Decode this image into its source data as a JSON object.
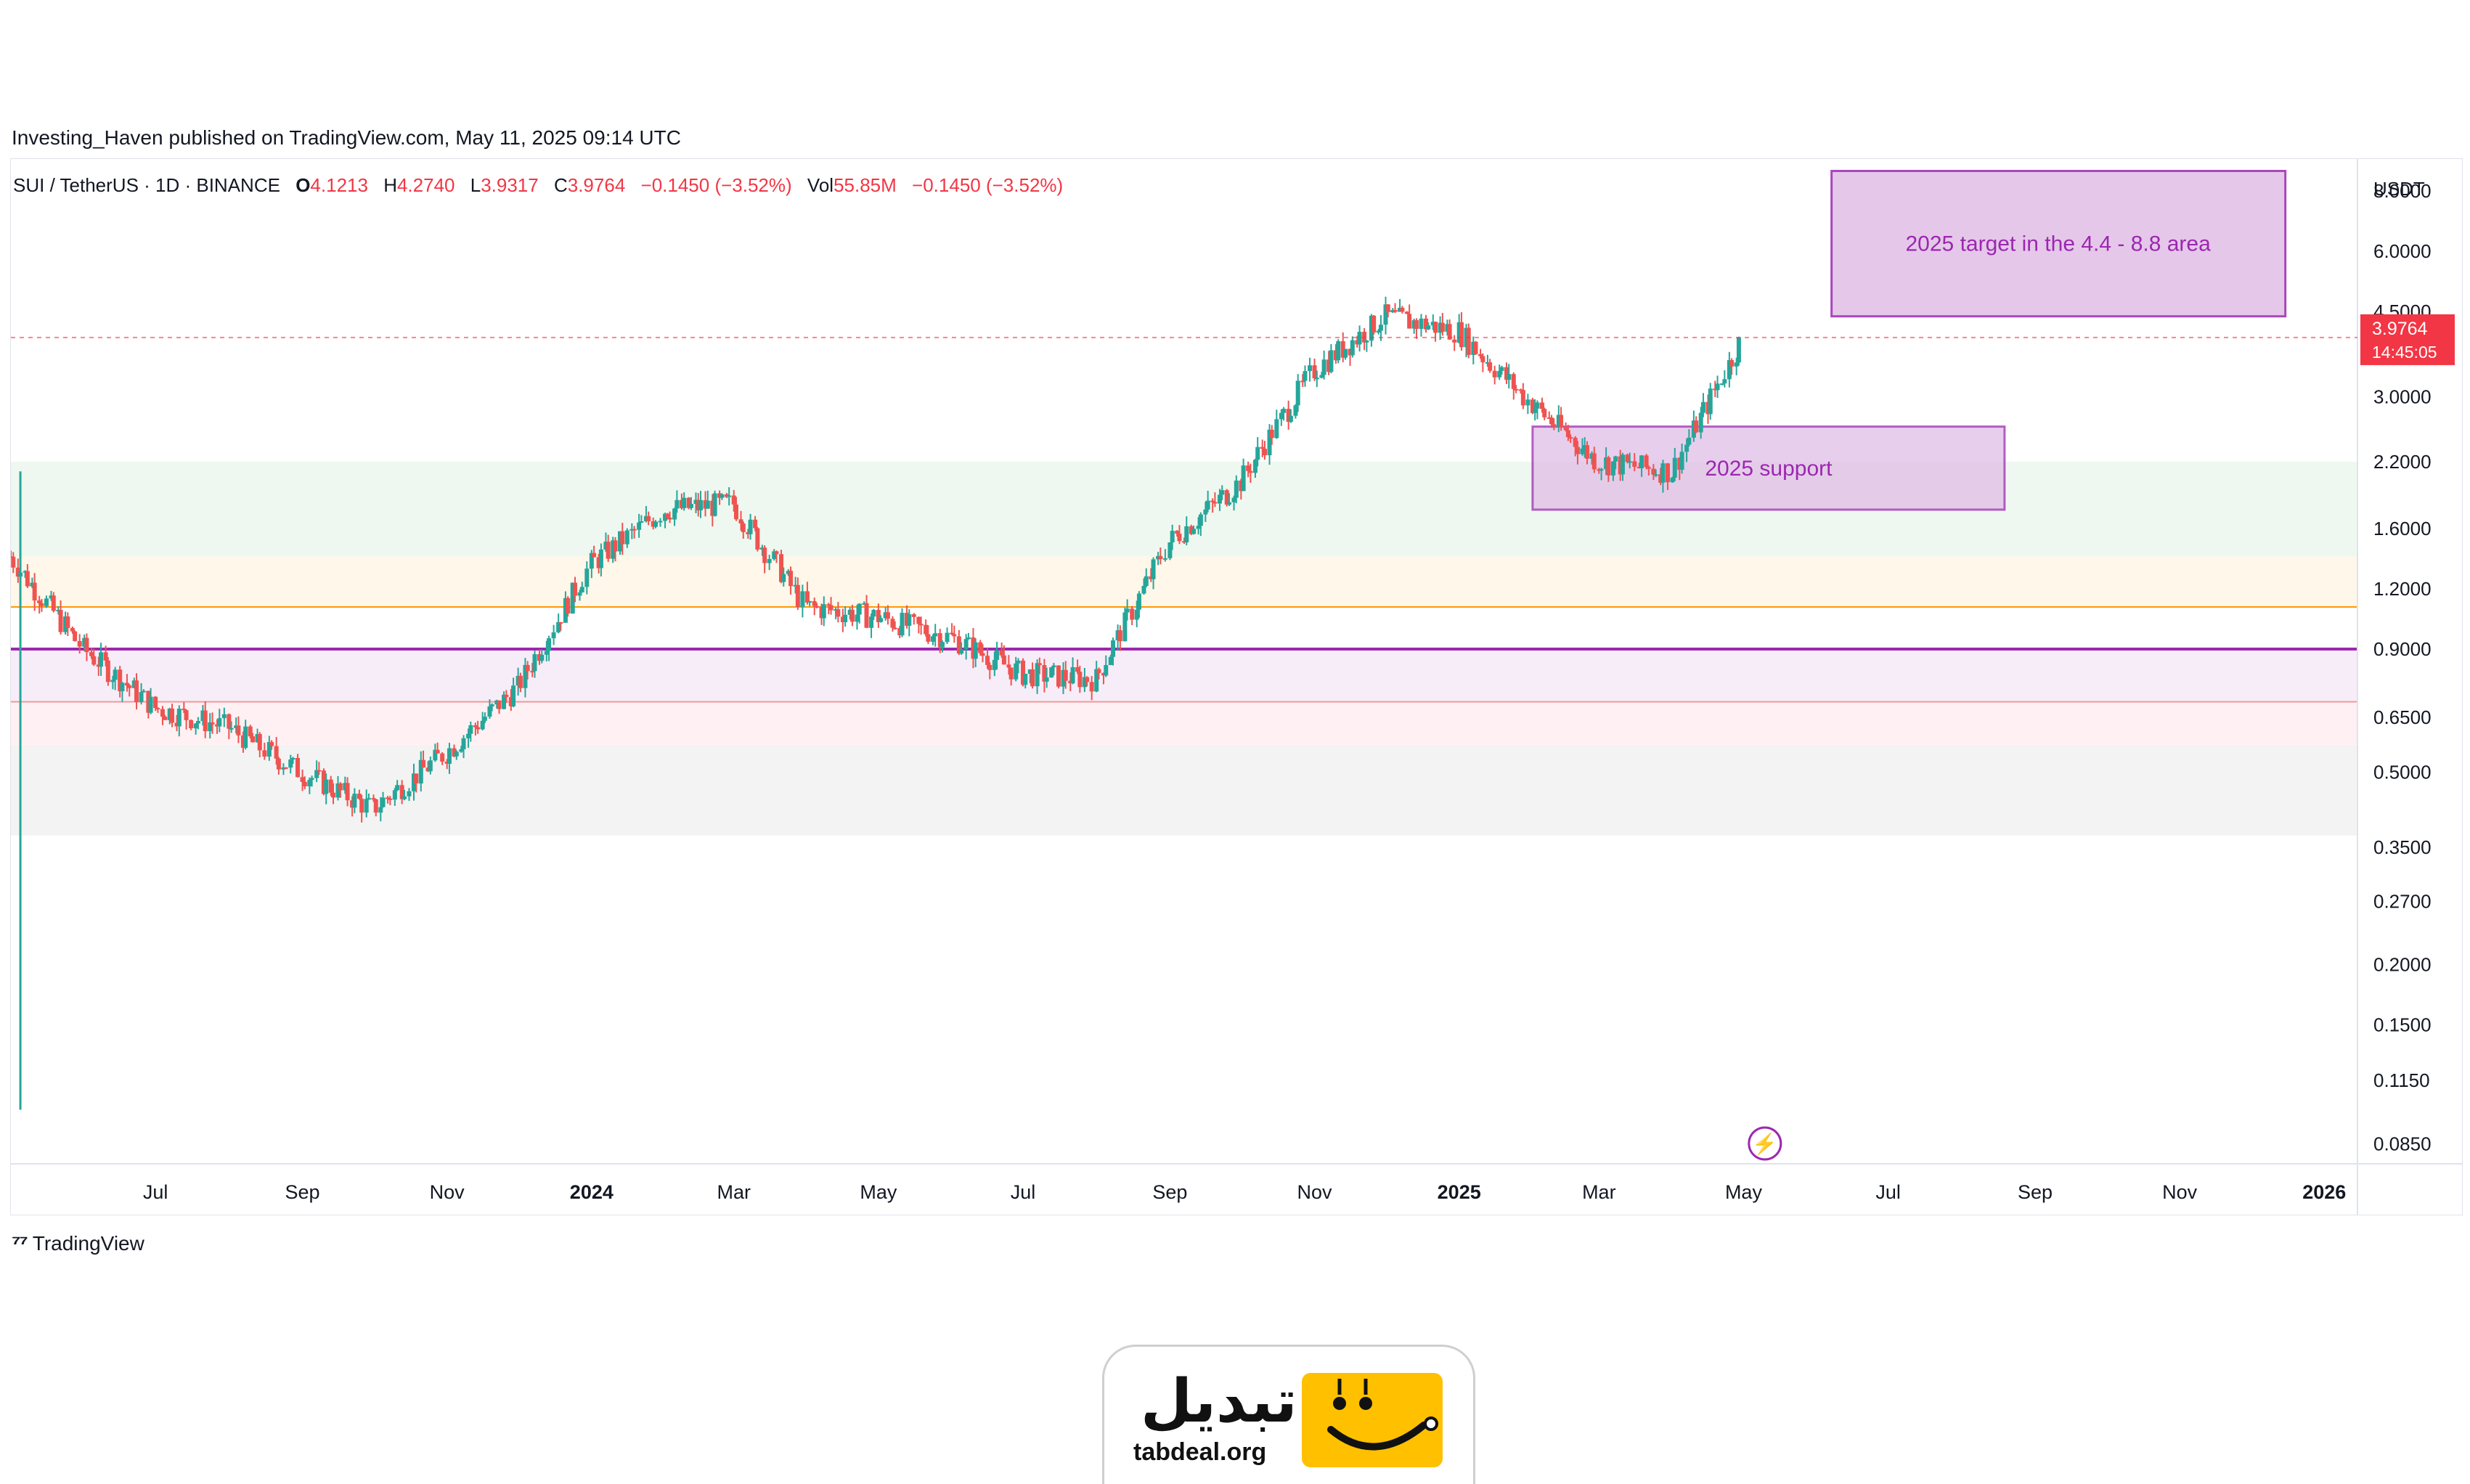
{
  "published_line": "Investing_Haven published on TradingView.com, May 11, 2025 09:14 UTC",
  "symbol_legend": {
    "symbol": "SUI / TetherUS · 1D · BINANCE",
    "open_label": "O",
    "open": "4.1213",
    "high_label": "H",
    "high": "4.2740",
    "low_label": "L",
    "low": "3.9317",
    "close_label": "C",
    "close": "3.9764",
    "change": "−0.1450 (−3.52%)",
    "vol_label": "Vol",
    "vol": "55.85M",
    "vol_change": "−0.1450 (−3.52%)"
  },
  "currency": "USDT",
  "price_axis": [
    "8.0000",
    "6.0000",
    "4.5000",
    "3.0000",
    "2.2000",
    "1.6000",
    "1.2000",
    "0.9000",
    "0.6500",
    "0.5000",
    "0.3500",
    "0.2700",
    "0.2000",
    "0.1500",
    "0.1150",
    "0.0850"
  ],
  "time_axis": [
    "Jul",
    "Sep",
    "Nov",
    "2024",
    "Mar",
    "May",
    "Jul",
    "Sep",
    "Nov",
    "2025",
    "Mar",
    "May",
    "Jul",
    "Sep",
    "Nov",
    "2026"
  ],
  "current_price": {
    "value": "3.9764",
    "countdown": "14:45:05",
    "color": "#f23645"
  },
  "annotations": {
    "target": "2025 target in the 4.4 - 8.8 area",
    "support": "2025 support"
  },
  "tv_brand": "TradingView",
  "tabdeal": {
    "name": "تبدیل",
    "url": "tabdeal.org",
    "color": "#ffc000"
  },
  "colors": {
    "up": "#26a69a",
    "down": "#ef5350",
    "annotation": "#9c27b0",
    "annotation_fill": "#e1bee7"
  },
  "chart_data": {
    "type": "candlestick",
    "scale": "log",
    "ylim": [
      0.08,
      9
    ],
    "price_levels": [
      {
        "value": 0.9,
        "color": "#9c27b0",
        "zone_to": 0.7,
        "zone_color": "#f3e5f5"
      },
      {
        "value": 1.1,
        "color": "#ff9800",
        "zone_to": 1.4,
        "zone_color": "#fff3e0"
      },
      {
        "value": 0.7,
        "color": "#ef9a9a",
        "zone_to": 0.57,
        "zone_color": "#ffebee"
      },
      {
        "zone_from": 1.4,
        "zone_to": 2.2,
        "zone_color": "#e8f5e9"
      },
      {
        "zone_from": 0.57,
        "zone_to": 0.37,
        "zone_color": "#eeeeee"
      }
    ],
    "target_zone": [
      4.4,
      8.8
    ],
    "support_zone": [
      1.75,
      2.6
    ],
    "series": [
      {
        "date": "2023-05",
        "close": 1.4
      },
      {
        "date": "2023-06",
        "close": 0.9
      },
      {
        "date": "2023-07",
        "close": 0.68
      },
      {
        "date": "2023-08",
        "close": 0.62
      },
      {
        "date": "2023-09",
        "close": 0.5
      },
      {
        "date": "2023-10",
        "close": 0.42
      },
      {
        "date": "2023-11",
        "close": 0.55
      },
      {
        "date": "2023-12",
        "close": 0.75
      },
      {
        "date": "2024-01",
        "close": 1.35
      },
      {
        "date": "2024-02",
        "close": 1.75
      },
      {
        "date": "2024-03",
        "close": 1.8
      },
      {
        "date": "2024-04",
        "close": 1.1
      },
      {
        "date": "2024-05",
        "close": 1.05
      },
      {
        "date": "2024-06",
        "close": 0.95
      },
      {
        "date": "2024-07",
        "close": 0.8
      },
      {
        "date": "2024-08",
        "close": 0.78
      },
      {
        "date": "2024-09",
        "close": 1.5
      },
      {
        "date": "2024-10",
        "close": 2.0
      },
      {
        "date": "2024-11",
        "close": 3.4
      },
      {
        "date": "2024-12",
        "close": 4.4
      },
      {
        "date": "2025-01",
        "close": 4.1
      },
      {
        "date": "2025-02",
        "close": 2.9
      },
      {
        "date": "2025-03",
        "close": 2.2
      },
      {
        "date": "2025-04",
        "close": 2.1
      },
      {
        "date": "2025-05",
        "close": 3.98
      }
    ]
  }
}
